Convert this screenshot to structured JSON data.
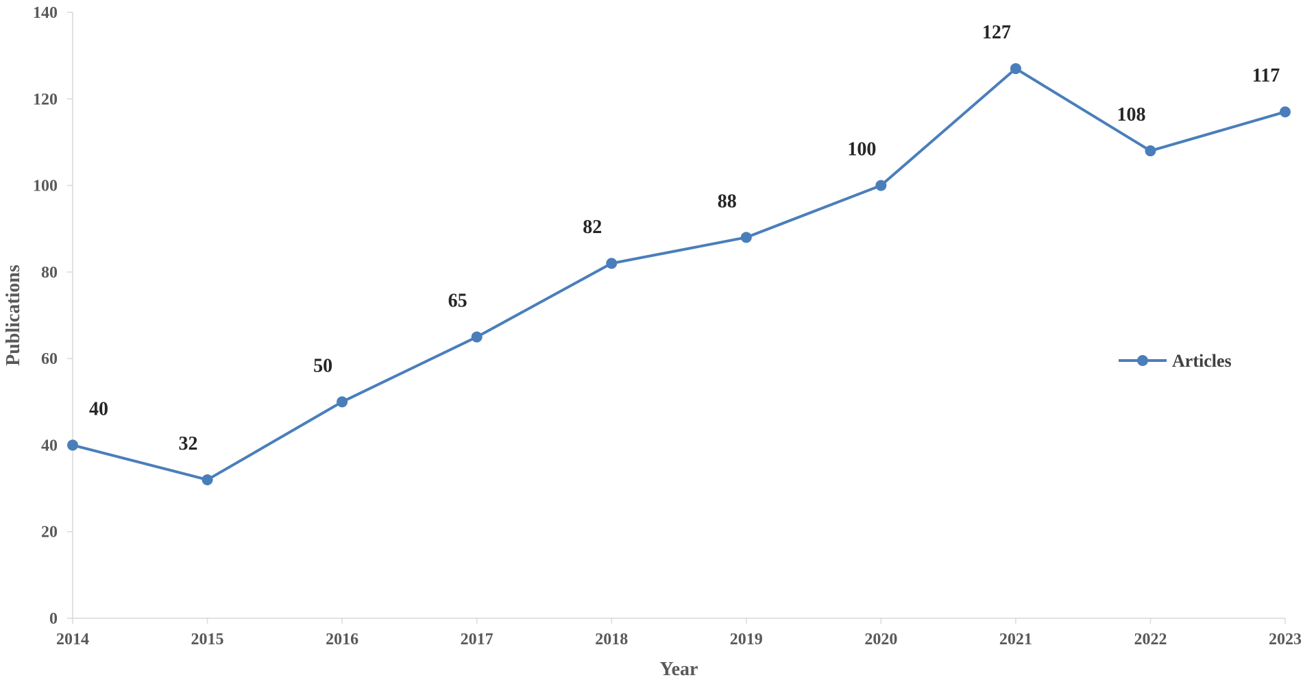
{
  "chart_data": {
    "type": "line",
    "title": "",
    "xlabel": "Year",
    "ylabel": "Publications",
    "ylim": [
      0,
      140
    ],
    "yticks": [
      0,
      20,
      40,
      60,
      80,
      100,
      120,
      140
    ],
    "categories": [
      "2014",
      "2015",
      "2016",
      "2017",
      "2018",
      "2019",
      "2020",
      "2021",
      "2022",
      "2023"
    ],
    "series": [
      {
        "name": "Articles",
        "values": [
          40,
          32,
          50,
          65,
          82,
          88,
          100,
          127,
          108,
          117
        ],
        "color": "#4a7ebb"
      }
    ],
    "data_labels": true,
    "grid": false,
    "legend_position": "right"
  }
}
